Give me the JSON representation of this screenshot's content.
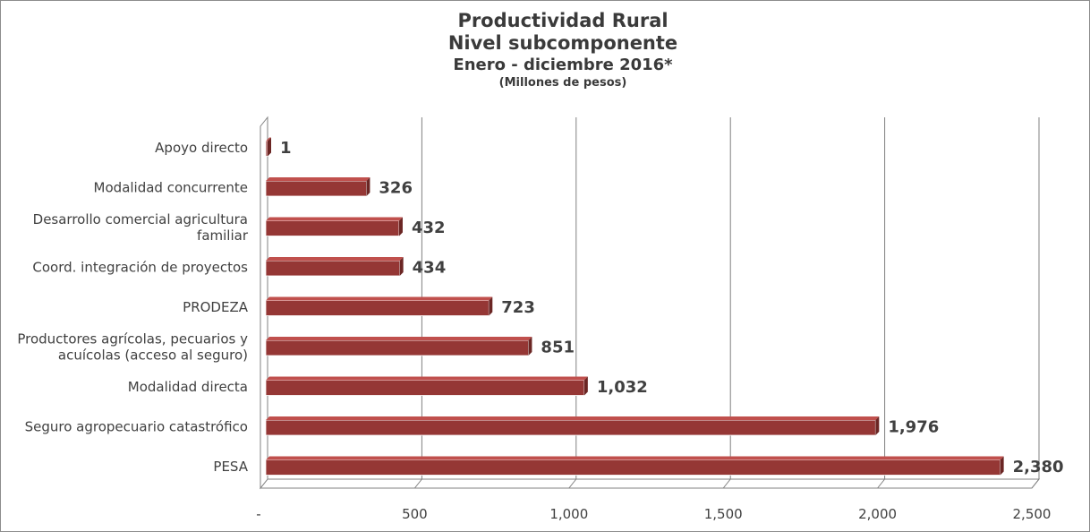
{
  "chart_data": {
    "type": "bar",
    "orientation": "horizontal",
    "title": "Productividad Rural",
    "subtitle": [
      "Nivel subcomponente",
      "Enero - diciembre 2016*",
      "(Millones de pesos)"
    ],
    "categories": [
      "Apoyo directo",
      "Modalidad concurrente",
      "Desarrollo comercial agricultura familiar",
      "Coord. integración de proyectos",
      "PRODEZA",
      "Productores agrícolas, pecuarios y acuícolas (acceso al seguro)",
      "Modalidad directa",
      "Seguro agropecuario catastrófico",
      "PESA"
    ],
    "category_lines": [
      [
        "Apoyo directo"
      ],
      [
        "Modalidad concurrente"
      ],
      [
        "Desarrollo comercial agricultura",
        "familiar"
      ],
      [
        "Coord. integración de proyectos"
      ],
      [
        "PRODEZA"
      ],
      [
        "Productores agrícolas, pecuarios y",
        "acuícolas (acceso al seguro)"
      ],
      [
        "Modalidad directa"
      ],
      [
        "Seguro agropecuario catastrófico"
      ],
      [
        "PESA"
      ]
    ],
    "values": [
      1,
      326,
      432,
      434,
      723,
      851,
      1032,
      1976,
      2380
    ],
    "value_labels": [
      "1",
      "326",
      "432",
      "434",
      "723",
      "851",
      "1,032",
      "1,976",
      "2,380"
    ],
    "xlim": [
      0,
      2500
    ],
    "x_ticks": [
      0,
      500,
      1000,
      1500,
      2000,
      2500
    ],
    "x_tick_labels": [
      "-",
      "500",
      "1,000",
      "1,500",
      "2,000",
      "2,500"
    ],
    "grid": true,
    "colors": {
      "bar_front": "#953735",
      "bar_top": "#c0504d",
      "bar_end": "#6b2624",
      "grid": "#808080",
      "text": "#404040"
    }
  }
}
